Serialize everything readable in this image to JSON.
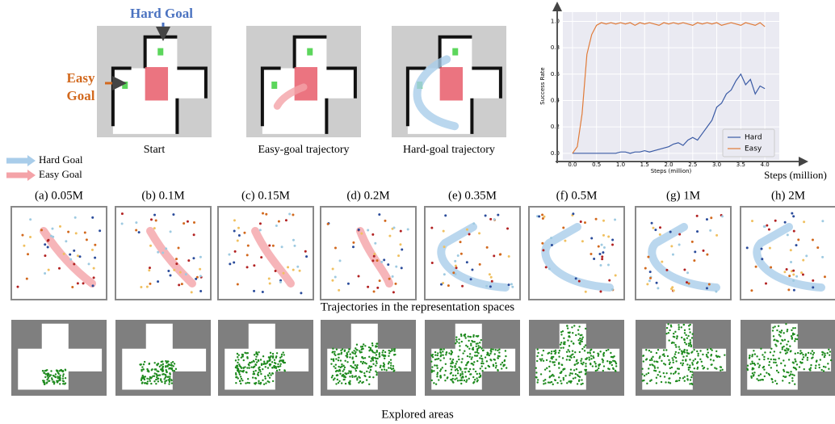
{
  "goal_labels": {
    "hard": "Hard Goal",
    "easy": [
      "Easy",
      "Goal"
    ]
  },
  "legend": [
    "Hard Goal",
    "Easy Goal"
  ],
  "panels": [
    {
      "caption": "Start"
    },
    {
      "caption": "Easy-goal trajectory"
    },
    {
      "caption": "Hard-goal trajectory"
    }
  ],
  "chart_data": {
    "type": "line",
    "xlabel": "Steps (million)",
    "ylabel": "Success Rate",
    "x": [
      0.0,
      0.1,
      0.2,
      0.3,
      0.4,
      0.5,
      0.6,
      0.7,
      0.8,
      0.9,
      1.0,
      1.1,
      1.2,
      1.3,
      1.4,
      1.5,
      1.6,
      1.7,
      1.8,
      1.9,
      2.0,
      2.1,
      2.2,
      2.3,
      2.4,
      2.5,
      2.6,
      2.7,
      2.8,
      2.9,
      3.0,
      3.1,
      3.2,
      3.3,
      3.4,
      3.5,
      3.6,
      3.7,
      3.8,
      3.9,
      4.0
    ],
    "series": [
      {
        "name": "Hard",
        "color": "#3b5ba5",
        "values": [
          0.0,
          0.0,
          0.0,
          0.0,
          0.0,
          0.0,
          0.0,
          0.0,
          0.0,
          0.0,
          0.01,
          0.01,
          0.0,
          0.01,
          0.01,
          0.02,
          0.01,
          0.02,
          0.03,
          0.04,
          0.05,
          0.07,
          0.08,
          0.06,
          0.1,
          0.12,
          0.1,
          0.15,
          0.2,
          0.25,
          0.35,
          0.38,
          0.45,
          0.48,
          0.55,
          0.6,
          0.52,
          0.56,
          0.45,
          0.51,
          0.49
        ]
      },
      {
        "name": "Easy",
        "color": "#e07b39",
        "values": [
          0.0,
          0.05,
          0.3,
          0.75,
          0.9,
          0.97,
          0.99,
          0.98,
          0.99,
          0.98,
          0.99,
          0.98,
          0.99,
          0.97,
          0.99,
          0.98,
          0.99,
          0.98,
          0.97,
          0.99,
          0.98,
          0.99,
          0.98,
          0.99,
          0.98,
          0.97,
          0.99,
          0.98,
          0.99,
          0.98,
          0.99,
          0.97,
          0.98,
          0.99,
          0.98,
          0.97,
          0.99,
          0.98,
          0.97,
          0.99,
          0.96
        ]
      }
    ],
    "xlim": [
      -0.2,
      4.3
    ],
    "ylim": [
      -0.05,
      1.07
    ],
    "xticks": [
      {
        "value": 0,
        "label": "0.0"
      },
      0.5,
      {
        "value": 1,
        "label": "1.0"
      },
      1.5,
      {
        "value": 2,
        "label": "2.0"
      },
      2.5,
      {
        "value": 3,
        "label": "3.0"
      },
      3.5,
      {
        "value": 4,
        "label": "4.0"
      }
    ],
    "yticks": [
      {
        "value": 0,
        "label": "0.0"
      },
      0.2,
      0.4,
      0.6,
      0.8,
      {
        "value": 1,
        "label": "1.0"
      }
    ],
    "grid": true,
    "legend_position": "lower right"
  },
  "outer_xlabel": "Steps (million)",
  "stages": [
    "(a) 0.05M",
    "(b) 0.1M",
    "(c) 0.15M",
    "(d) 0.2M",
    "(e) 0.35M",
    "(f) 0.5M",
    "(g) 1M",
    "(h) 2M"
  ],
  "row_captions": {
    "trajectories": "Trajectories in the representation spaces",
    "explored": "Explored areas"
  }
}
